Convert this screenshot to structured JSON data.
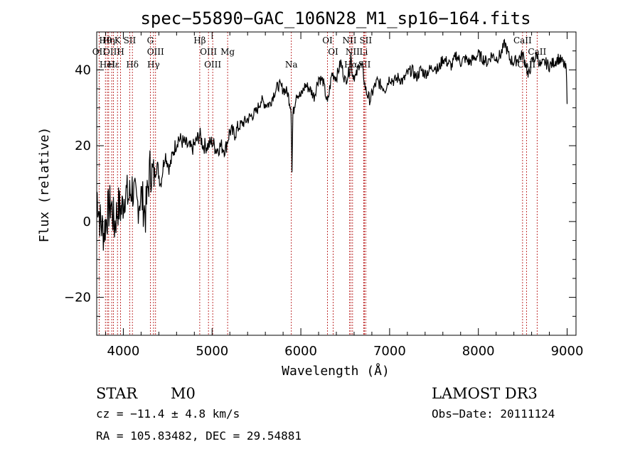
{
  "chart_data": {
    "type": "line",
    "title": "spec−55890−GAC_106N28_M1_sp16−164.fits",
    "xlabel": "Wavelength (Å)",
    "ylabel": "Flux (relative)",
    "xlim": [
      3700,
      9100
    ],
    "ylim": [
      -30,
      50
    ],
    "xticks": [
      4000,
      5000,
      6000,
      7000,
      8000,
      9000
    ],
    "xtick_labels": [
      "4000",
      "5000",
      "6000",
      "7000",
      "8000",
      "9000"
    ],
    "yticks": [
      -20,
      0,
      20,
      40
    ],
    "ytick_labels": [
      "−20",
      "0",
      "20",
      "40"
    ],
    "series": [
      {
        "name": "flux",
        "x": [
          3700,
          3740,
          3780,
          3820,
          3860,
          3900,
          3940,
          3980,
          4020,
          4060,
          4100,
          4150,
          4200,
          4250,
          4300,
          4340,
          4380,
          4420,
          4470,
          4520,
          4570,
          4620,
          4670,
          4720,
          4770,
          4820,
          4860,
          4900,
          4950,
          5000,
          5050,
          5100,
          5150,
          5200,
          5250,
          5300,
          5350,
          5400,
          5450,
          5500,
          5550,
          5600,
          5650,
          5700,
          5750,
          5800,
          5850,
          5890,
          5900,
          5910,
          5950,
          6000,
          6050,
          6100,
          6150,
          6200,
          6250,
          6300,
          6350,
          6400,
          6450,
          6500,
          6550,
          6563,
          6580,
          6620,
          6660,
          6700,
          6720,
          6740,
          6780,
          6820,
          6860,
          6900,
          6950,
          7000,
          7050,
          7100,
          7150,
          7200,
          7250,
          7300,
          7350,
          7400,
          7450,
          7500,
          7550,
          7600,
          7650,
          7700,
          7750,
          7800,
          7850,
          7900,
          7950,
          8000,
          8050,
          8100,
          8150,
          8200,
          8250,
          8300,
          8350,
          8400,
          8450,
          8500,
          8542,
          8560,
          8600,
          8662,
          8700,
          8750,
          8800,
          8850,
          8900,
          8950,
          8990,
          9000
        ],
        "y": [
          8,
          0,
          -3,
          2,
          5,
          -1,
          4,
          3,
          8,
          6,
          9,
          4,
          7,
          2,
          14,
          12,
          15,
          10,
          18,
          14,
          19,
          22,
          21,
          20,
          19,
          21,
          23,
          20,
          20,
          21,
          19,
          20,
          19,
          24,
          23,
          25,
          26,
          27,
          28,
          29,
          32,
          31,
          31,
          34,
          36,
          35,
          34,
          30,
          13,
          28,
          34,
          33,
          36,
          35,
          33,
          38,
          37,
          31,
          39,
          38,
          42,
          37,
          40,
          44,
          39,
          38,
          42,
          40,
          36,
          34,
          32,
          35,
          37,
          36,
          35,
          38,
          37,
          38,
          37,
          39,
          40,
          38,
          40,
          39,
          40,
          41,
          40,
          43,
          42,
          41,
          44,
          42,
          43,
          42,
          43,
          44,
          43,
          42,
          44,
          43,
          44,
          47,
          43,
          42,
          43,
          44,
          41,
          38,
          42,
          44,
          41,
          42,
          41,
          42,
          43,
          42,
          40,
          31
        ]
      }
    ],
    "spectral_lines": [
      {
        "label": "Hθ",
        "x": 3798
      },
      {
        "label": "OII",
        "x": 3727
      },
      {
        "label": "HeI",
        "x": 3820
      },
      {
        "label": "Hη",
        "x": 3835
      },
      {
        "label": "OIII",
        "x": 3869
      },
      {
        "label": "Hε",
        "x": 3889
      },
      {
        "label": "K",
        "x": 3934
      },
      {
        "label": "H",
        "x": 3969
      },
      {
        "label": "Hδ",
        "x": 4102
      },
      {
        "label": "SII",
        "x": 4072
      },
      {
        "label": "OIII",
        "x": 4363
      },
      {
        "label": "Hγ",
        "x": 4340
      },
      {
        "label": "G",
        "x": 4304
      },
      {
        "label": "OIII",
        "x": 4959
      },
      {
        "label": "OIII",
        "x": 5007
      },
      {
        "label": "Hβ",
        "x": 4861
      },
      {
        "label": "Mg",
        "x": 5175
      },
      {
        "label": "Na",
        "x": 5893
      },
      {
        "label": "OI",
        "x": 6300
      },
      {
        "label": "OI",
        "x": 6364
      },
      {
        "label": "Hα",
        "x": 6563
      },
      {
        "label": "NII",
        "x": 6548
      },
      {
        "label": "NII",
        "x": 6583
      },
      {
        "label": "SII",
        "x": 6717
      },
      {
        "label": "SII",
        "x": 6731
      },
      {
        "label": "Li",
        "x": 6708
      },
      {
        "label": "CaII",
        "x": 8542
      },
      {
        "label": "CaII",
        "x": 8498
      },
      {
        "label": "CaII",
        "x": 8662
      }
    ]
  },
  "info": {
    "class": "STAR",
    "subclass": "M0",
    "survey": "LAMOST DR3",
    "cz": "cz = −11.4 ± 4.8 km/s",
    "obs_date": "Obs−Date: 20111124",
    "coords": "RA = 105.83482, DEC =  29.54881"
  },
  "colors": {
    "spectrum": "#000000",
    "line_marker": "#b00000"
  }
}
